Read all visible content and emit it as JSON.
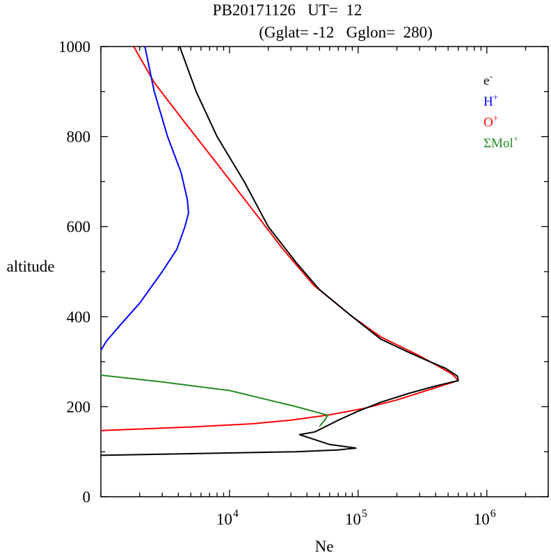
{
  "chart_data": {
    "type": "line",
    "title_line1": "PB20171126   UT=  12",
    "title_line2": "(Gglat= -12   Gglon=  280)",
    "xlabel": "Ne",
    "ylabel": "altitude",
    "x_scale": "log",
    "xlim": [
      1000,
      3000000
    ],
    "ylim": [
      0,
      1000
    ],
    "x_ticks": [
      {
        "base": "10",
        "exp": "4",
        "value": 10000
      },
      {
        "base": "10",
        "exp": "5",
        "value": 100000
      },
      {
        "base": "10",
        "exp": "6",
        "value": 1000000
      }
    ],
    "y_ticks": [
      {
        "label": "0",
        "value": 0
      },
      {
        "label": "200",
        "value": 200
      },
      {
        "label": "400",
        "value": 400
      },
      {
        "label": "600",
        "value": 600
      },
      {
        "label": "800",
        "value": 800
      },
      {
        "label": "1000",
        "value": 1000
      }
    ],
    "legend_position": "top-right",
    "series": [
      {
        "name": "e",
        "sup": "-",
        "color": "#000000",
        "points": [
          [
            1000,
            92
          ],
          [
            33000,
            100
          ],
          [
            70000,
            104
          ],
          [
            96000,
            108
          ],
          [
            60000,
            116
          ],
          [
            35000,
            138
          ],
          [
            46000,
            144
          ],
          [
            55000,
            155
          ],
          [
            70000,
            170
          ],
          [
            100000,
            190
          ],
          [
            150000,
            210
          ],
          [
            250000,
            230
          ],
          [
            400000,
            246
          ],
          [
            600000,
            258
          ],
          [
            590000,
            268
          ],
          [
            480000,
            285
          ],
          [
            360000,
            300
          ],
          [
            250000,
            320
          ],
          [
            150000,
            350
          ],
          [
            90000,
            400
          ],
          [
            50000,
            460
          ],
          [
            33000,
            520
          ],
          [
            20000,
            600
          ],
          [
            13000,
            700
          ],
          [
            8000,
            800
          ],
          [
            5500,
            900
          ],
          [
            4100,
            1000
          ]
        ]
      },
      {
        "name": "H",
        "sup": "+",
        "color": "#0000ff",
        "points": [
          [
            1000,
            325
          ],
          [
            1100,
            345
          ],
          [
            1400,
            380
          ],
          [
            2000,
            430
          ],
          [
            3000,
            500
          ],
          [
            3900,
            550
          ],
          [
            4500,
            600
          ],
          [
            4800,
            630
          ],
          [
            4700,
            660
          ],
          [
            4200,
            720
          ],
          [
            3300,
            800
          ],
          [
            2600,
            900
          ],
          [
            2200,
            1000
          ]
        ]
      },
      {
        "name": "O",
        "sup": "+",
        "color": "#ff0000",
        "points": [
          [
            1000,
            147
          ],
          [
            5000,
            155
          ],
          [
            15000,
            162
          ],
          [
            30000,
            170
          ],
          [
            60000,
            182
          ],
          [
            110000,
            196
          ],
          [
            200000,
            215
          ],
          [
            350000,
            237
          ],
          [
            600000,
            258
          ],
          [
            540000,
            272
          ],
          [
            420000,
            290
          ],
          [
            290000,
            315
          ],
          [
            150000,
            355
          ],
          [
            90000,
            400
          ],
          [
            45000,
            470
          ],
          [
            26000,
            550
          ],
          [
            14000,
            650
          ],
          [
            7500,
            750
          ],
          [
            4000,
            850
          ],
          [
            2600,
            920
          ],
          [
            1800,
            1000
          ]
        ]
      },
      {
        "name": "ΣMol",
        "sup": "+",
        "color": "#228b22",
        "points": [
          [
            1000,
            270
          ],
          [
            3000,
            255
          ],
          [
            10000,
            236
          ],
          [
            33000,
            200
          ],
          [
            58000,
            181
          ],
          [
            55000,
            170
          ],
          [
            50000,
            156
          ]
        ]
      }
    ]
  }
}
